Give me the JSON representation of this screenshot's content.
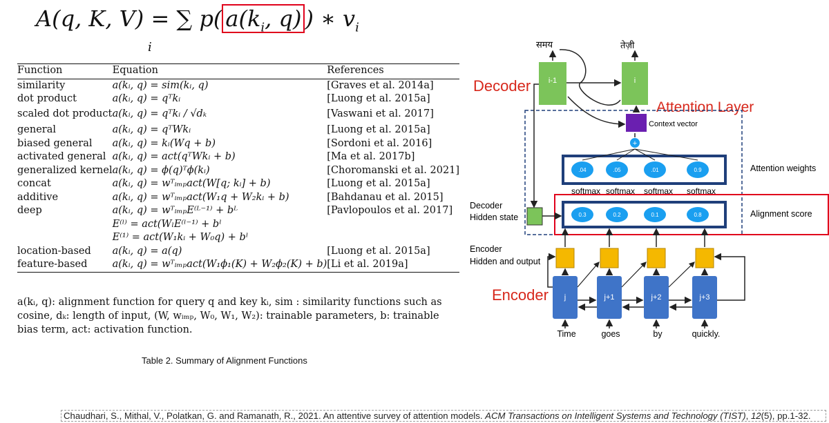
{
  "formula": {
    "lhs": "A(q, K, V) = ∑",
    "mid": "p(",
    "boxed": "a(k",
    "boxed_sub": "i",
    "boxed_tail": ", q)",
    "rhs": ") ∗ v",
    "rhs_sub": "i",
    "sum_index": "i"
  },
  "table": {
    "headers": [
      "Function",
      "Equation",
      "References"
    ],
    "rows": [
      {
        "function": "similarity",
        "equation": "a(kᵢ, q) = sim(kᵢ, q)",
        "reference": "[Graves et al. 2014a]"
      },
      {
        "function": "dot product",
        "equation": "a(kᵢ, q) = qᵀkᵢ",
        "reference": "[Luong et al. 2015a]"
      },
      {
        "function": "scaled dot product",
        "equation": "a(kᵢ, q) = qᵀkᵢ / √dₖ",
        "reference": "[Vaswani et al. 2017]"
      },
      {
        "function": "general",
        "equation": "a(kᵢ, q) = qᵀWkᵢ",
        "reference": "[Luong et al. 2015a]"
      },
      {
        "function": "biased general",
        "equation": "a(kᵢ, q) = kᵢ(Wq + b)",
        "reference": "[Sordoni et al. 2016]"
      },
      {
        "function": "activated general",
        "equation": "a(kᵢ, q) = act(qᵀWkᵢ + b)",
        "reference": "[Ma et al. 2017b]"
      },
      {
        "function": "generalized kernel",
        "equation": "a(kᵢ, q) = ϕ(q)ᵀϕ(kᵢ)",
        "reference": "[Choromanski et al. 2021]"
      },
      {
        "function": "concat",
        "equation": "a(kᵢ, q) = wᵀᵢₘₚact(W[q; kᵢ] + b)",
        "reference": "[Luong et al. 2015a]"
      },
      {
        "function": "additive",
        "equation": "a(kᵢ, q) = wᵀᵢₘₚact(W₁q + W₂kᵢ + b)",
        "reference": "[Bahdanau et al. 2015]"
      },
      {
        "function": "deep",
        "equation": "a(kᵢ, q) = wᵀᵢₘₚE⁽ᴸ⁻¹⁾ + bᴸ",
        "reference": "[Pavlopoulos et al. 2017]"
      },
      {
        "function": "",
        "equation": "E⁽ˡ⁾ = act(WₗE⁽ˡ⁻¹⁾ + bˡ",
        "reference": ""
      },
      {
        "function": "",
        "equation": "E⁽¹⁾ = act(W₁kᵢ + W₀q) + bˡ",
        "reference": ""
      },
      {
        "function": "location-based",
        "equation": "a(kᵢ, q) = a(q)",
        "reference": "[Luong et al. 2015a]"
      },
      {
        "function": "feature-based",
        "equation": "a(kᵢ, q) = wᵀᵢₘₚact(W₁ϕ₁(K) + W₂ϕ₂(K) + b)",
        "reference": "[Li et al. 2019a]"
      }
    ],
    "note": "a(kᵢ, q): alignment function for query q and key  kᵢ, sim : similarity functions such as cosine, dₖ: length of input, (W, wᵢₘₚ, W₀, W₁, W₂): trainable parameters, b: trainable bias term, act: activation function.",
    "caption": "Table 2.  Summary of Alignment Functions"
  },
  "diagram": {
    "decoder_title": "Decoder",
    "encoder_title": "Encoder",
    "attention_layer_title": "Attention Layer",
    "top_words": [
      "समय",
      "तेज़ी"
    ],
    "decoder_cells": [
      "i-1",
      "i"
    ],
    "context_vector": "Context vector",
    "plus_symbol": "+",
    "attention_weights_label": "Attention weights",
    "weights": [
      ".04",
      ".05",
      ".01",
      "0.9"
    ],
    "softmax_labels": [
      "softmax",
      "softmax",
      "softmax",
      "softmax"
    ],
    "alignment_label": "Alignment score",
    "scores": [
      "0.3",
      "0.2",
      "0.1",
      "0.8"
    ],
    "decoder_hidden_label": [
      "Decoder",
      "Hidden state"
    ],
    "encoder_hidden_label": [
      "Encoder",
      "Hidden and output"
    ],
    "encoder_cells": [
      "j",
      "j+1",
      "j+2",
      "j+3"
    ],
    "input_words": [
      "Time",
      "goes",
      "by",
      "quickly."
    ],
    "colors": {
      "red": "#e0001b",
      "green": "#7cc45a",
      "purple": "#6a1fb0",
      "blue_circle": "#1a9ff0",
      "dark_blue": "#1f3f7a",
      "encoder_blue": "#3f74c8",
      "orange": "#f5b800",
      "title_red": "#d7271b"
    }
  },
  "citation": {
    "prefix": "Chaudhari, S., Mithal, V., Polatkan, G. and Ramanath, R., 2021. An attentive survey of attention models. ",
    "journal": "ACM Transactions on Intelligent Systems and Technology (TIST)",
    "sep": ", ",
    "volume": "12",
    "suffix": "(5), pp.1-32."
  }
}
